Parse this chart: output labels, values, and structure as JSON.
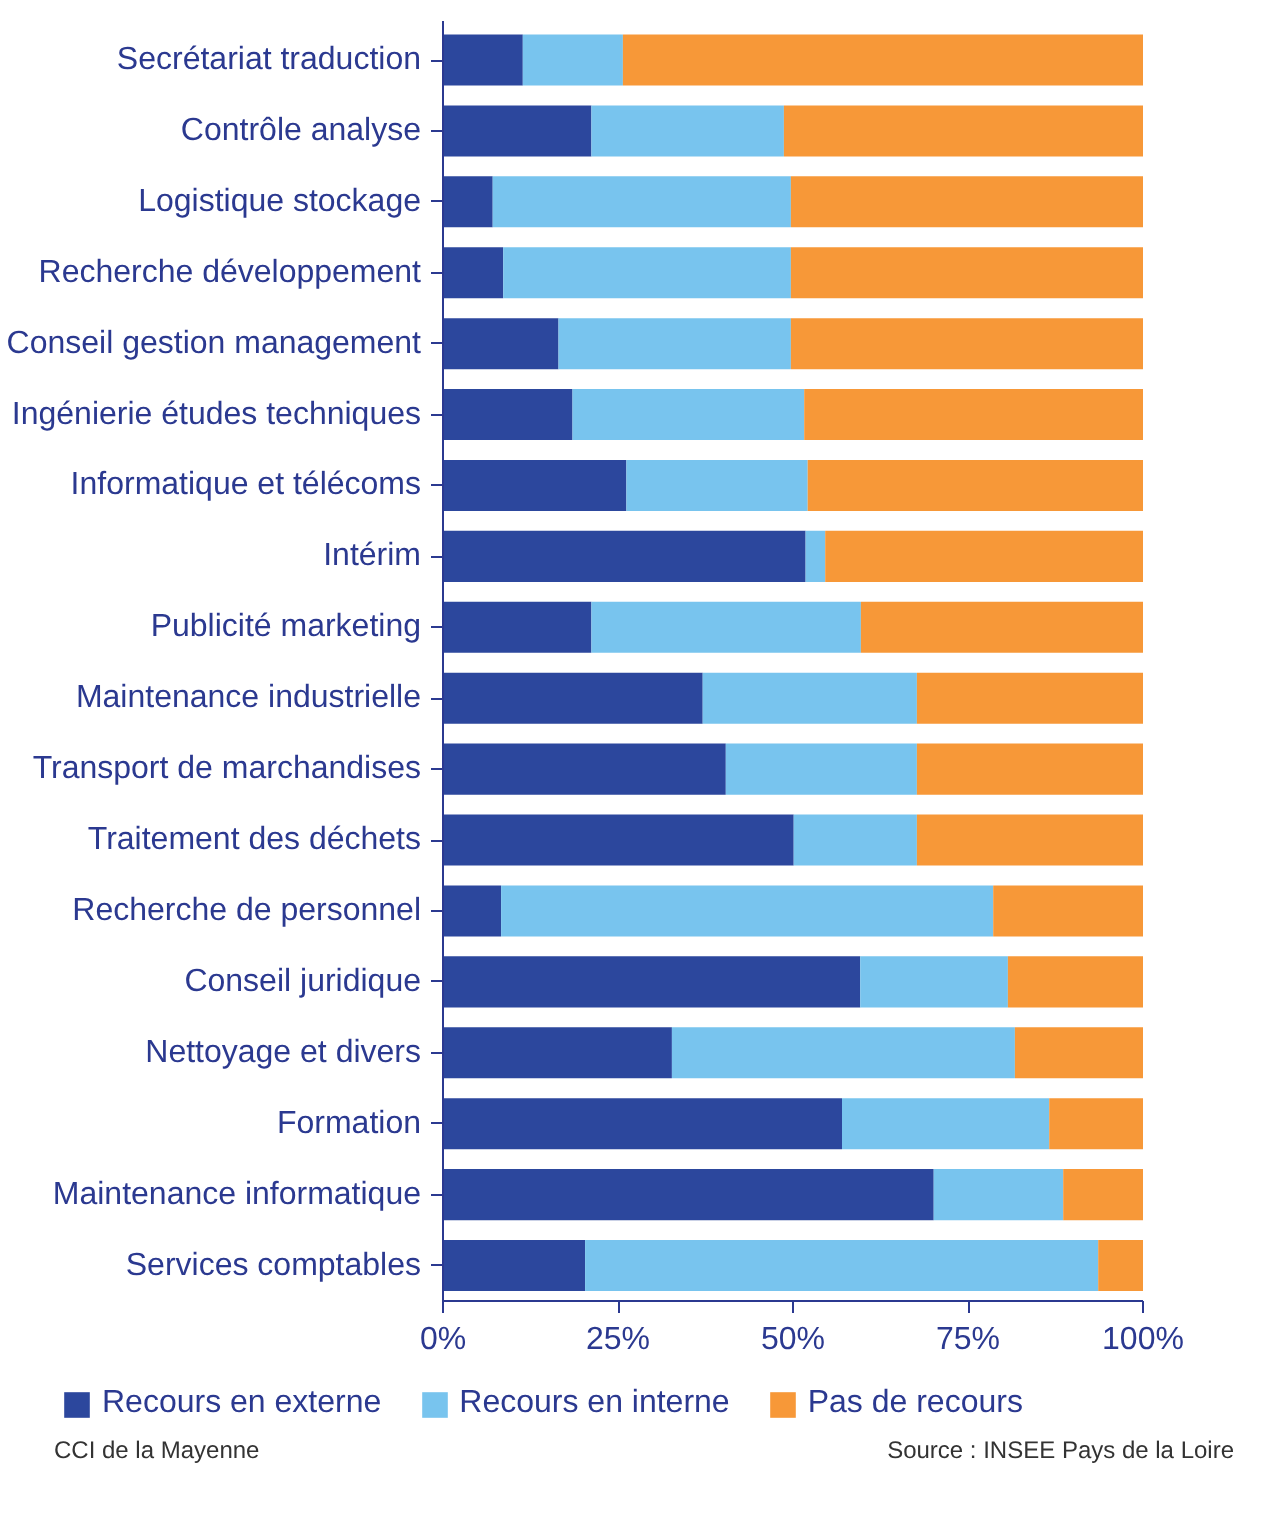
{
  "chart_data": {
    "type": "bar",
    "orientation": "horizontal",
    "stacked": true,
    "categories": [
      "Secrétariat traduction",
      "Contrôle analyse",
      "Logistique stockage",
      "Recherche développement",
      "Conseil gestion management",
      "Ingénierie études techniques",
      "Informatique et télécoms",
      "Intérim",
      "Publicité marketing",
      "Maintenance industrielle",
      "Transport de marchandises",
      "Traitement des déchets",
      "Recherche de personnel",
      "Conseil juridique",
      "Nettoyage et divers",
      "Formation",
      "Maintenance informatique",
      "Services comptables"
    ],
    "series": [
      {
        "name": "Recours en externe",
        "color": "#2c479d",
        "values": [
          11.4,
          21.2,
          7.1,
          8.6,
          16.5,
          18.5,
          26.2,
          51.8,
          21.2,
          37.1,
          40.4,
          50.1,
          8.3,
          59.6,
          32.7,
          57.0,
          70.1,
          20.3
        ]
      },
      {
        "name": "Recours en interne",
        "color": "#78c4ee",
        "values": [
          14.3,
          27.5,
          42.6,
          41.1,
          33.2,
          33.1,
          25.9,
          2.8,
          38.5,
          30.6,
          27.3,
          17.6,
          70.3,
          21.1,
          49.0,
          29.6,
          18.5,
          73.3
        ]
      },
      {
        "name": "Pas de recours",
        "color": "#f79838",
        "values": [
          74.3,
          51.3,
          50.3,
          50.3,
          50.3,
          48.4,
          47.9,
          45.4,
          40.3,
          32.3,
          32.3,
          32.3,
          21.4,
          19.3,
          18.3,
          13.4,
          11.4,
          6.4
        ]
      }
    ],
    "xlim": [
      0,
      100
    ],
    "xticks": [
      {
        "value": 0,
        "label": "0%"
      },
      {
        "value": 25,
        "label": "25%"
      },
      {
        "value": 50,
        "label": "50%"
      },
      {
        "value": 75,
        "label": "75%"
      },
      {
        "value": 100,
        "label": "100%"
      }
    ],
    "grid": false,
    "legend": "bottom",
    "annotations": [
      "CCI de la Mayenne",
      "Source : INSEE Pays de la Loire"
    ]
  }
}
